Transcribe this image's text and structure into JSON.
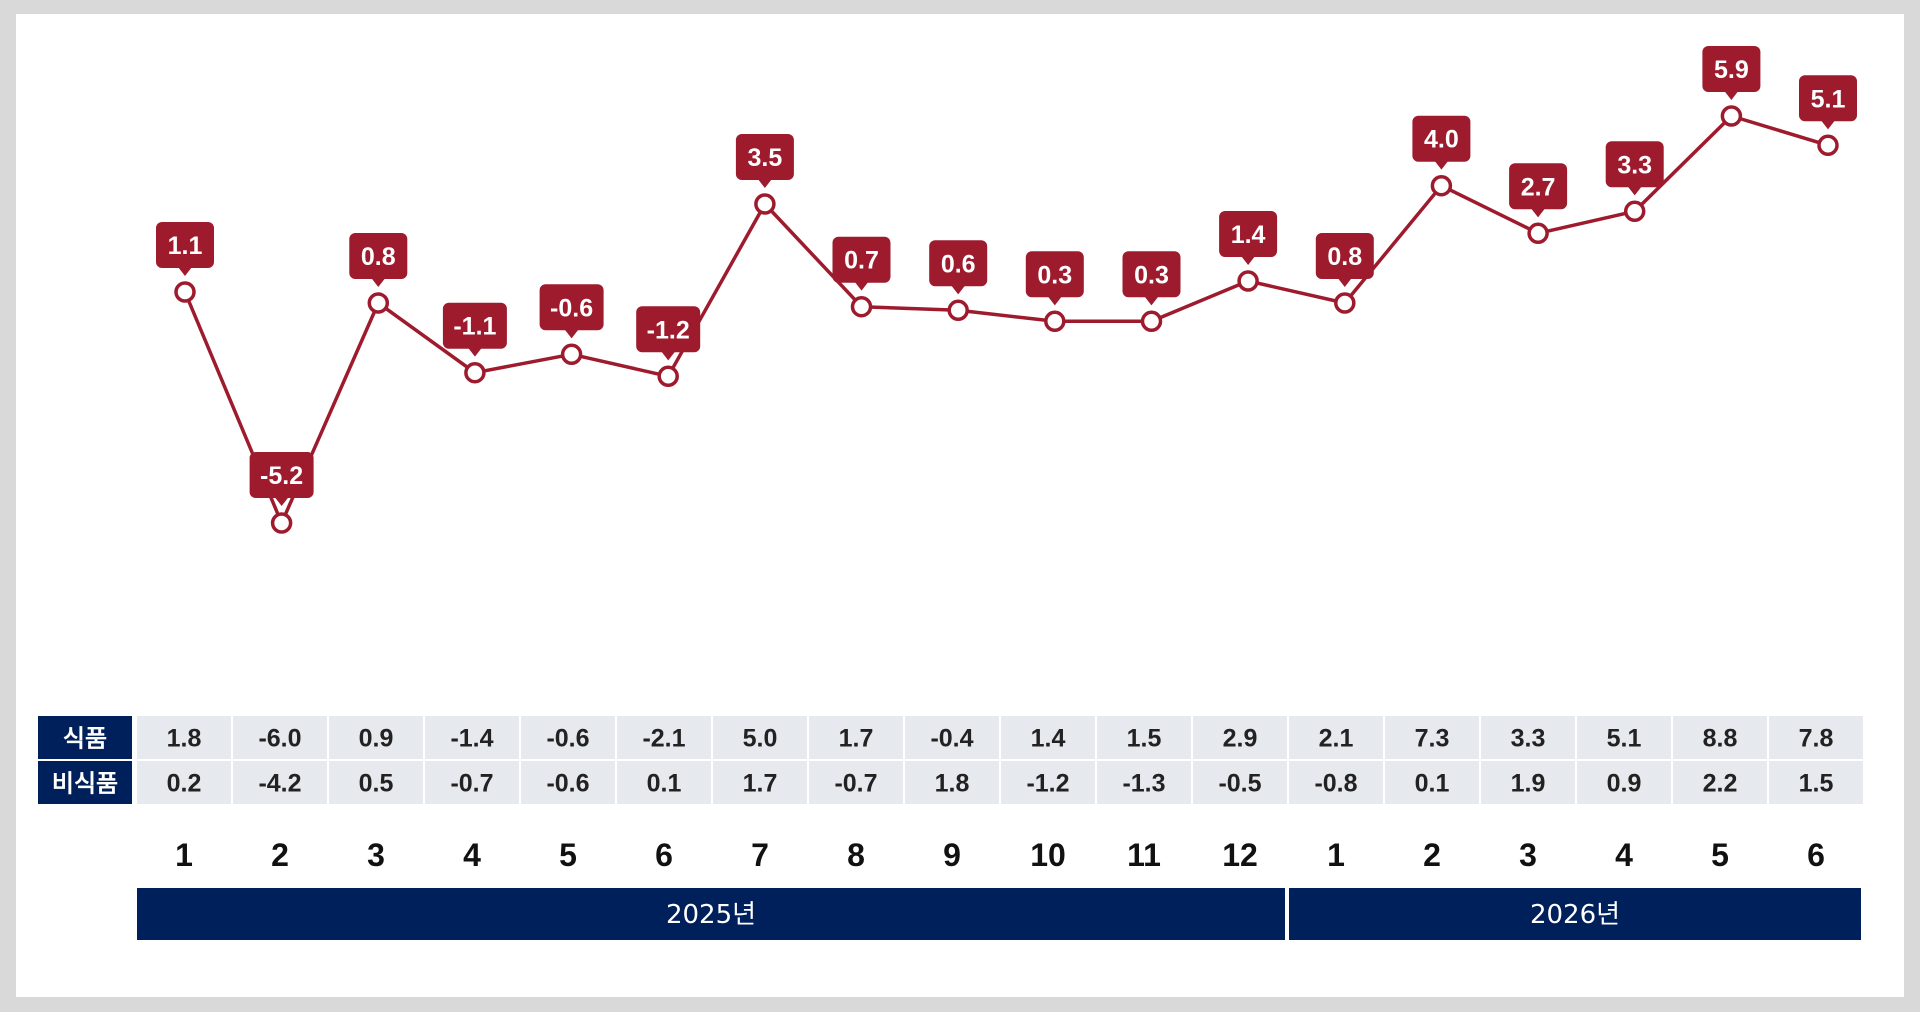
{
  "chart_data": {
    "type": "line",
    "colors": {
      "line": "#9e1b2e",
      "label_bg": "#9e1b2e",
      "marker_fill": "#ffffff",
      "table_bg": "#e6e9ee",
      "header_bg": "#00205b"
    },
    "series": [
      {
        "values": [
          1.1,
          -5.2,
          0.8,
          -1.1,
          -0.6,
          -1.2,
          3.5,
          0.7,
          0.6,
          0.3,
          0.3,
          1.4,
          0.8,
          4.0,
          2.7,
          3.3,
          5.9,
          5.1
        ],
        "labels": [
          "1.1",
          "-5.2",
          "0.8",
          "-1.1",
          "-0.6",
          "-1.2",
          "3.5",
          "0.7",
          "0.6",
          "0.3",
          "0.3",
          "1.4",
          "0.8",
          "4.0",
          "2.7",
          "3.3",
          "5.9",
          "5.1"
        ]
      }
    ],
    "table": {
      "rows": [
        {
          "header": "식품",
          "values": [
            "1.8",
            "-6.0",
            "0.9",
            "-1.4",
            "-0.6",
            "-2.1",
            "5.0",
            "1.7",
            "-0.4",
            "1.4",
            "1.5",
            "2.9",
            "2.1",
            "7.3",
            "3.3",
            "5.1",
            "8.8",
            "7.8"
          ]
        },
        {
          "header": "비식품",
          "values": [
            "0.2",
            "-4.2",
            "0.5",
            "-0.7",
            "-0.6",
            "0.1",
            "1.7",
            "-0.7",
            "1.8",
            "-1.2",
            "-1.3",
            "-0.5",
            "-0.8",
            "0.1",
            "1.9",
            "0.9",
            "2.2",
            "1.5"
          ]
        }
      ]
    },
    "months": [
      "1",
      "2",
      "3",
      "4",
      "5",
      "6",
      "7",
      "8",
      "9",
      "10",
      "11",
      "12",
      "1",
      "2",
      "3",
      "4",
      "5",
      "6"
    ],
    "years": [
      {
        "label": "2025년",
        "months": 12
      },
      {
        "label": "2026년",
        "months": 6
      }
    ],
    "yrange": [
      -6,
      7
    ],
    "grid": false,
    "legend": "none"
  }
}
